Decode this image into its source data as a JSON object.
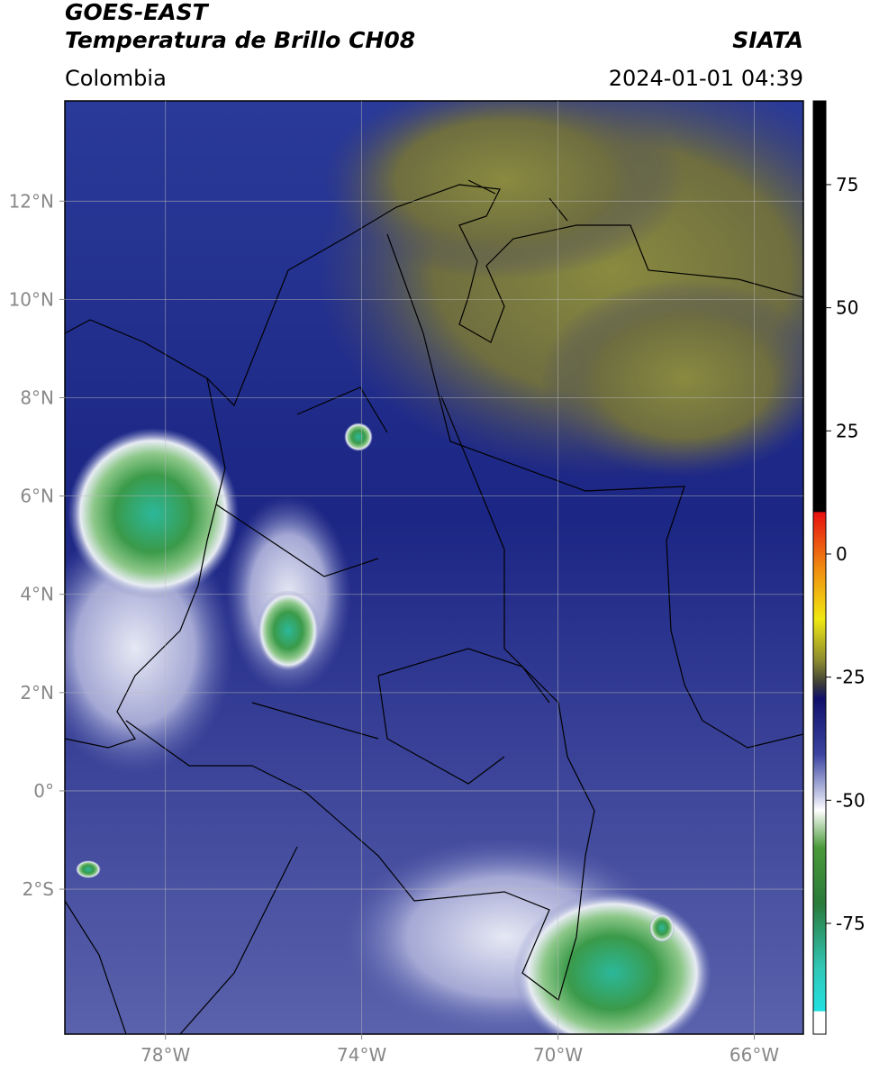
{
  "header": {
    "satellite": "GOES-EAST",
    "product": "Temperatura de Brillo CH08",
    "region": "Colombia",
    "source": "SIATA",
    "datetime": "2024-01-01 04:39"
  },
  "map": {
    "lonlim": [
      -80.05,
      -65
    ],
    "latlim": [
      -4.95,
      14.04
    ],
    "lonticks": [
      {
        "value": -78,
        "label": "78°W"
      },
      {
        "value": -74,
        "label": "74°W"
      },
      {
        "value": -70,
        "label": "70°W"
      },
      {
        "value": -66,
        "label": "66°W"
      }
    ],
    "latticks": [
      {
        "value": 12,
        "label": "12°N"
      },
      {
        "value": 10,
        "label": "10°N"
      },
      {
        "value": 8,
        "label": "8°N"
      },
      {
        "value": 6,
        "label": "6°N"
      },
      {
        "value": 4,
        "label": "4°N"
      },
      {
        "value": 2,
        "label": "2°N"
      },
      {
        "value": 0,
        "label": "0°"
      },
      {
        "value": -2,
        "label": "2°S"
      }
    ],
    "grid": true
  },
  "colorbar": {
    "vlim": [
      -97.5,
      92
    ],
    "ticks": [
      75,
      50,
      25,
      0,
      -25,
      -50,
      -75
    ]
  }
}
